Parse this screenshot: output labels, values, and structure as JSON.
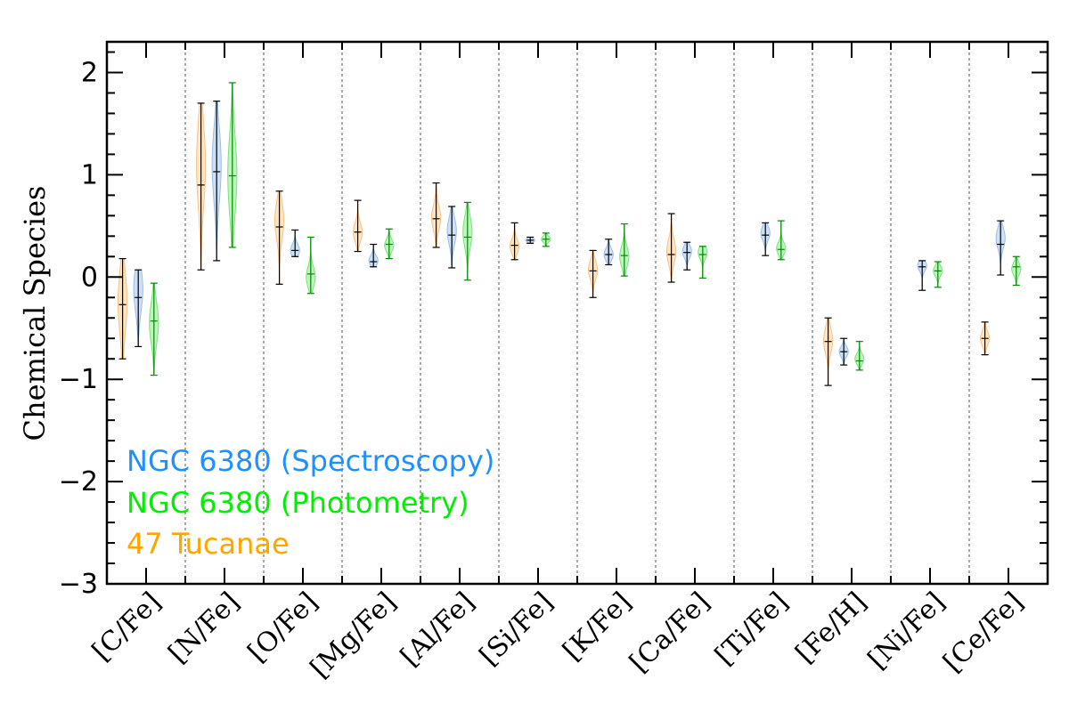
{
  "chart_data": {
    "type": "violin",
    "title": "",
    "xlabel": "",
    "ylabel": "Chemical Species",
    "ylim": [
      -3,
      2.3
    ],
    "yticks": [
      -3,
      -2,
      -1,
      0,
      1,
      2
    ],
    "ytick_labels": [
      "−3",
      "−2",
      "−1",
      "0",
      "1",
      "2"
    ],
    "categories": [
      "[C/Fe]",
      "[N/Fe]",
      "[O/Fe]",
      "[Mg/Fe]",
      "[Al/Fe]",
      "[Si/Fe]",
      "[K/Fe]",
      "[Ca/Fe]",
      "[Ti/Fe]",
      "[Fe/H]",
      "[Ni/Fe]",
      "[Ce/Fe]"
    ],
    "legend": [
      {
        "label": "NGC 6380 (Spectroscopy)",
        "color": "#1e90ff"
      },
      {
        "label": "NGC 6380 (Photometry)",
        "color": "#00ee00"
      },
      {
        "label": "47 Tucanae",
        "color": "#ffa500"
      }
    ],
    "series": [
      {
        "name": "47 Tucanae",
        "fill": "#fde0b8",
        "edge": "#f3c48c",
        "line": "#000000",
        "offset": -0.3,
        "width_scale": 0.058,
        "values": [
          {
            "min": -0.8,
            "max": 0.18,
            "median": -0.27,
            "peak": -0.25,
            "spread": 0.3
          },
          {
            "min": 0.07,
            "max": 1.7,
            "median": 0.9,
            "peak": 1.1,
            "spread": 0.4
          },
          {
            "min": -0.07,
            "max": 0.84,
            "median": 0.49,
            "peak": 0.55,
            "spread": 0.18
          },
          {
            "min": 0.25,
            "max": 0.75,
            "median": 0.44,
            "peak": 0.44,
            "spread": 0.09
          },
          {
            "min": 0.29,
            "max": 0.92,
            "median": 0.57,
            "peak": 0.58,
            "spread": 0.12
          },
          {
            "min": 0.17,
            "max": 0.53,
            "median": 0.31,
            "peak": 0.3,
            "spread": 0.07
          },
          {
            "min": -0.2,
            "max": 0.26,
            "median": 0.06,
            "peak": 0.07,
            "spread": 0.09
          },
          {
            "min": -0.05,
            "max": 0.62,
            "median": 0.22,
            "peak": 0.25,
            "spread": 0.12
          },
          null,
          {
            "min": -1.06,
            "max": -0.4,
            "median": -0.63,
            "peak": -0.62,
            "spread": 0.12
          },
          null,
          {
            "min": -0.76,
            "max": -0.44,
            "median": -0.6,
            "peak": -0.6,
            "spread": 0.07
          }
        ]
      },
      {
        "name": "NGC 6380 (Spectroscopy)",
        "fill": "#c4daf5",
        "edge": "#9ebde6",
        "line": "#000000",
        "offset": -0.1,
        "width_scale": 0.058,
        "values": [
          {
            "min": -0.68,
            "max": 0.07,
            "median": -0.2,
            "peak": -0.12,
            "spread": 0.22
          },
          {
            "min": 0.16,
            "max": 1.72,
            "median": 1.03,
            "peak": 1.1,
            "spread": 0.35
          },
          {
            "min": 0.2,
            "max": 0.46,
            "median": 0.26,
            "peak": 0.26,
            "spread": 0.06
          },
          {
            "min": 0.1,
            "max": 0.32,
            "median": 0.15,
            "peak": 0.16,
            "spread": 0.05
          },
          {
            "min": 0.09,
            "max": 0.69,
            "median": 0.41,
            "peak": 0.45,
            "spread": 0.13
          },
          {
            "min": 0.33,
            "max": 0.39,
            "median": 0.36,
            "peak": 0.36,
            "spread": 0.02
          },
          {
            "min": 0.12,
            "max": 0.37,
            "median": 0.22,
            "peak": 0.22,
            "spread": 0.06
          },
          {
            "min": 0.07,
            "max": 0.34,
            "median": 0.24,
            "peak": 0.25,
            "spread": 0.06
          },
          {
            "min": 0.21,
            "max": 0.53,
            "median": 0.41,
            "peak": 0.43,
            "spread": 0.07
          },
          {
            "min": -0.86,
            "max": -0.6,
            "median": -0.73,
            "peak": -0.73,
            "spread": 0.05
          },
          {
            "min": -0.13,
            "max": 0.16,
            "median": 0.1,
            "peak": 0.11,
            "spread": 0.05
          },
          {
            "min": 0.02,
            "max": 0.55,
            "median": 0.32,
            "peak": 0.38,
            "spread": 0.1
          }
        ]
      },
      {
        "name": "NGC 6380 (Photometry)",
        "fill": "#b0f5b0",
        "edge": "#7fe07f",
        "line": "#008800",
        "offset": 0.1,
        "width_scale": 0.058,
        "values": [
          {
            "min": -0.96,
            "max": -0.06,
            "median": -0.43,
            "peak": -0.45,
            "spread": 0.2
          },
          {
            "min": 0.29,
            "max": 1.9,
            "median": 0.99,
            "peak": 1.0,
            "spread": 0.38
          },
          {
            "min": -0.16,
            "max": 0.39,
            "median": 0.03,
            "peak": 0.0,
            "spread": 0.1
          },
          {
            "min": 0.18,
            "max": 0.47,
            "median": 0.32,
            "peak": 0.31,
            "spread": 0.06
          },
          {
            "min": -0.03,
            "max": 0.73,
            "median": 0.39,
            "peak": 0.44,
            "spread": 0.15
          },
          {
            "min": 0.3,
            "max": 0.43,
            "median": 0.37,
            "peak": 0.37,
            "spread": 0.03
          },
          {
            "min": 0.01,
            "max": 0.52,
            "median": 0.21,
            "peak": 0.2,
            "spread": 0.1
          },
          {
            "min": -0.01,
            "max": 0.3,
            "median": 0.22,
            "peak": 0.24,
            "spread": 0.06
          },
          {
            "min": 0.17,
            "max": 0.55,
            "median": 0.27,
            "peak": 0.28,
            "spread": 0.06
          },
          {
            "min": -0.91,
            "max": -0.63,
            "median": -0.82,
            "peak": -0.8,
            "spread": 0.05
          },
          {
            "min": -0.1,
            "max": 0.15,
            "median": 0.06,
            "peak": 0.06,
            "spread": 0.05
          },
          {
            "min": -0.08,
            "max": 0.2,
            "median": 0.1,
            "peak": 0.08,
            "spread": 0.06
          }
        ]
      }
    ]
  }
}
